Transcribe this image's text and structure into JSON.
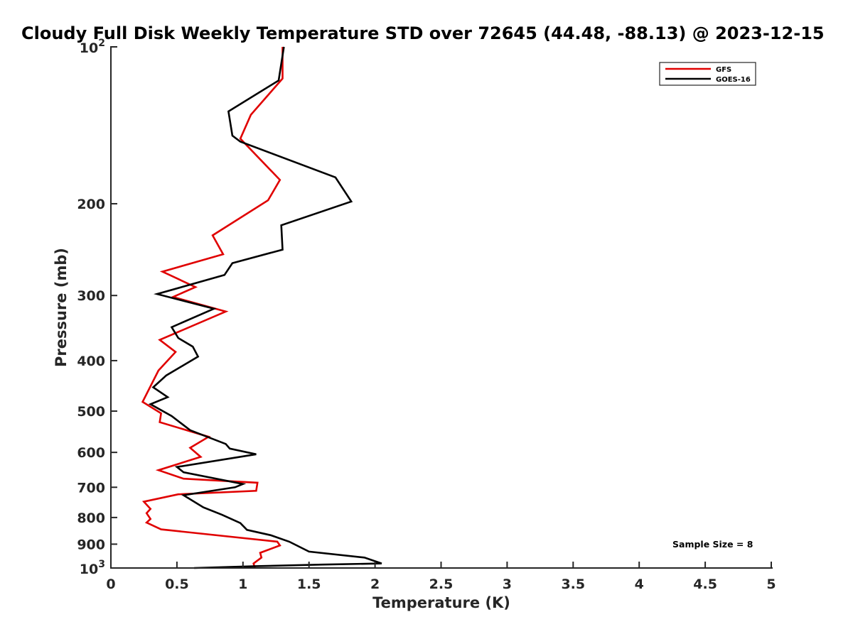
{
  "chart_data": {
    "type": "line",
    "title": "Cloudy Full Disk Weekly Temperature STD over 72645 (44.48, -88.13) @ 2023-12-15",
    "xlabel": "Temperature (K)",
    "ylabel": "Pressure (mb)",
    "xlim": [
      0,
      5
    ],
    "ylim": [
      100,
      1000
    ],
    "y_scale": "log",
    "y_reversed": true,
    "x_ticks": [
      "0",
      "0.5",
      "1",
      "1.5",
      "2",
      "2.5",
      "3",
      "3.5",
      "4",
      "4.5",
      "5"
    ],
    "y_ticks": [
      {
        "value": 100,
        "base": "10",
        "exp": "2"
      },
      {
        "value": 200,
        "label": "200"
      },
      {
        "value": 300,
        "label": "300"
      },
      {
        "value": 400,
        "label": "400"
      },
      {
        "value": 500,
        "label": "500"
      },
      {
        "value": 600,
        "label": "600"
      },
      {
        "value": 700,
        "label": "700"
      },
      {
        "value": 800,
        "label": "800"
      },
      {
        "value": 900,
        "label": "900"
      },
      {
        "value": 1000,
        "base": "10",
        "exp": "3"
      }
    ],
    "grid": false,
    "legend_position": "top-right",
    "annotation": "Sample Size = 8",
    "series": [
      {
        "name": "GFS",
        "color": "#e00000",
        "points": [
          [
            1.3,
            100
          ],
          [
            1.3,
            115
          ],
          [
            1.06,
            135
          ],
          [
            0.98,
            150
          ],
          [
            1.28,
            180
          ],
          [
            1.19,
            197
          ],
          [
            0.77,
            230
          ],
          [
            0.85,
            250
          ],
          [
            0.39,
            270
          ],
          [
            0.64,
            289
          ],
          [
            0.47,
            302
          ],
          [
            0.87,
            322
          ],
          [
            0.37,
            365
          ],
          [
            0.49,
            385
          ],
          [
            0.36,
            418
          ],
          [
            0.24,
            480
          ],
          [
            0.38,
            505
          ],
          [
            0.37,
            525
          ],
          [
            0.74,
            560
          ],
          [
            0.6,
            588
          ],
          [
            0.68,
            612
          ],
          [
            0.36,
            649
          ],
          [
            0.55,
            674
          ],
          [
            1.11,
            686
          ],
          [
            1.1,
            711
          ],
          [
            0.51,
            722
          ],
          [
            0.25,
            746
          ],
          [
            0.3,
            770
          ],
          [
            0.27,
            785
          ],
          [
            0.3,
            805
          ],
          [
            0.27,
            818
          ],
          [
            0.38,
            843
          ],
          [
            1.26,
            890
          ],
          [
            1.28,
            905
          ],
          [
            1.13,
            935
          ],
          [
            1.14,
            955
          ],
          [
            1.08,
            980
          ],
          [
            1.09,
            1000
          ]
        ]
      },
      {
        "name": "GOES-16",
        "color": "#000000",
        "points": [
          [
            1.31,
            100
          ],
          [
            1.27,
            116
          ],
          [
            0.89,
            133
          ],
          [
            0.92,
            148
          ],
          [
            0.98,
            152
          ],
          [
            1.7,
            178
          ],
          [
            1.82,
            198
          ],
          [
            1.29,
            220
          ],
          [
            1.3,
            245
          ],
          [
            0.92,
            260
          ],
          [
            0.86,
            274
          ],
          [
            0.35,
            298
          ],
          [
            0.78,
            318
          ],
          [
            0.46,
            345
          ],
          [
            0.51,
            362
          ],
          [
            0.62,
            376
          ],
          [
            0.66,
            393
          ],
          [
            0.42,
            427
          ],
          [
            0.32,
            450
          ],
          [
            0.43,
            470
          ],
          [
            0.3,
            485
          ],
          [
            0.46,
            511
          ],
          [
            0.6,
            544
          ],
          [
            0.87,
            578
          ],
          [
            0.9,
            590
          ],
          [
            1.1,
            605
          ],
          [
            0.5,
            640
          ],
          [
            0.55,
            655
          ],
          [
            1.0,
            690
          ],
          [
            0.94,
            700
          ],
          [
            0.55,
            725
          ],
          [
            0.7,
            765
          ],
          [
            0.84,
            790
          ],
          [
            0.98,
            820
          ],
          [
            1.03,
            845
          ],
          [
            1.21,
            865
          ],
          [
            1.35,
            890
          ],
          [
            1.5,
            930
          ],
          [
            1.92,
            955
          ],
          [
            2.05,
            980
          ],
          [
            1.6,
            985
          ],
          [
            1.1,
            992
          ],
          [
            0.63,
            1000
          ]
        ]
      }
    ]
  }
}
